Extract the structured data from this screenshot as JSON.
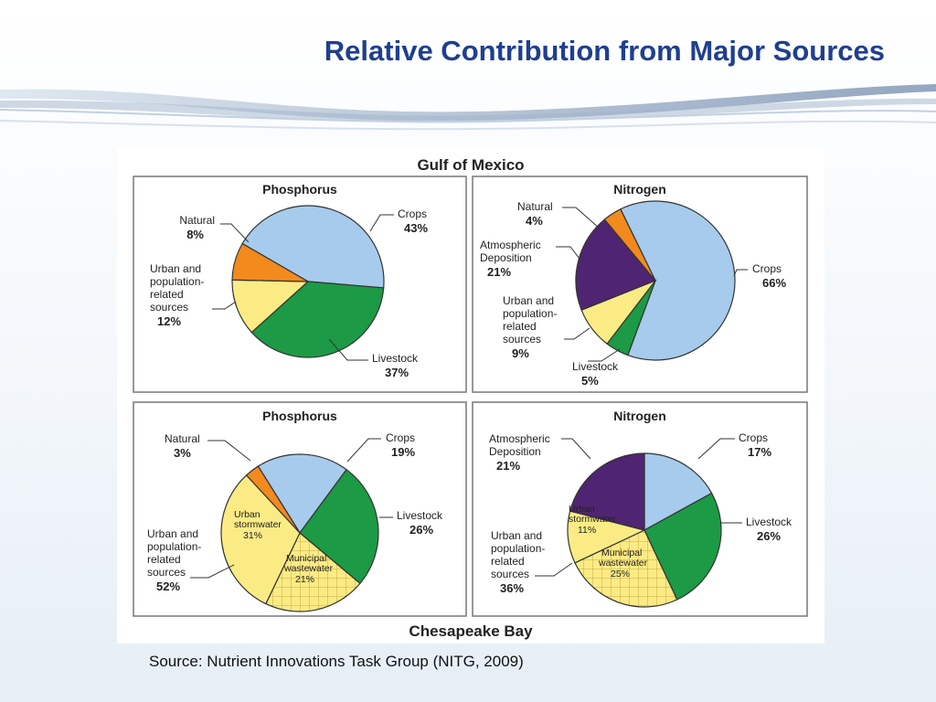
{
  "slide": {
    "title": "Relative Contribution from Major Sources",
    "source": "Source: Nutrient Innovations Task Group (NITG, 2009)"
  },
  "figure": {
    "top_heading": "Gulf of Mexico",
    "bottom_heading": "Chesapeake Bay"
  },
  "colors": {
    "crops": "#a6cbec",
    "livestock": "#1c9a45",
    "urban": "#fbeb85",
    "natural": "#f28a1e",
    "atmospheric": "#4f2472",
    "title": "#1f3f8f"
  },
  "chart_data": [
    {
      "type": "pie",
      "title": "Phosphorus",
      "region": "Gulf of Mexico",
      "slices": [
        {
          "name": "Crops",
          "value": 43,
          "label": "43%"
        },
        {
          "name": "Livestock",
          "value": 37,
          "label": "37%"
        },
        {
          "name": "Urban and population-related sources",
          "value": 12,
          "label": "12%"
        },
        {
          "name": "Natural",
          "value": 8,
          "label": "8%"
        }
      ]
    },
    {
      "type": "pie",
      "title": "Nitrogen",
      "region": "Gulf of Mexico",
      "slices": [
        {
          "name": "Crops",
          "value": 66,
          "label": "66%"
        },
        {
          "name": "Livestock",
          "value": 5,
          "label": "5%"
        },
        {
          "name": "Urban and population-related sources",
          "value": 9,
          "label": "9%"
        },
        {
          "name": "Atmospheric Deposition",
          "value": 21,
          "label": "21%"
        },
        {
          "name": "Natural",
          "value": 4,
          "label": "4%"
        }
      ]
    },
    {
      "type": "pie",
      "title": "Phosphorus",
      "region": "Chesapeake Bay",
      "slices": [
        {
          "name": "Crops",
          "value": 19,
          "label": "19%"
        },
        {
          "name": "Livestock",
          "value": 26,
          "label": "26%"
        },
        {
          "name": "Municipal wastewater",
          "value": 21,
          "label": "21%"
        },
        {
          "name": "Urban stormwater",
          "value": 31,
          "label": "31%"
        },
        {
          "name": "Natural",
          "value": 3,
          "label": "3%"
        }
      ],
      "group": {
        "name": "Urban and population-related sources",
        "label": "52%"
      }
    },
    {
      "type": "pie",
      "title": "Nitrogen",
      "region": "Chesapeake Bay",
      "slices": [
        {
          "name": "Crops",
          "value": 17,
          "label": "17%"
        },
        {
          "name": "Livestock",
          "value": 26,
          "label": "26%"
        },
        {
          "name": "Municipal wastewater",
          "value": 25,
          "label": "25%"
        },
        {
          "name": "Urban stormwater",
          "value": 11,
          "label": "11%"
        },
        {
          "name": "Atmospheric Deposition",
          "value": 21,
          "label": "21%"
        }
      ],
      "group": {
        "name": "Urban and population-related sources",
        "label": "36%"
      }
    }
  ],
  "labels": {
    "p1": {
      "natural": [
        "Natural",
        "8%"
      ],
      "crops": [
        "Crops",
        "43%"
      ],
      "urban": [
        "Urban and",
        "population-",
        "related",
        "sources",
        "12%"
      ],
      "livestock": [
        "Livestock",
        "37%"
      ]
    },
    "p2": {
      "natural": [
        "Natural",
        "4%"
      ],
      "atmo": [
        "Atmospheric",
        "Deposition",
        "21%"
      ],
      "crops": [
        "Crops",
        "66%"
      ],
      "urban": [
        "Urban and",
        "population-",
        "related",
        "sources",
        "9%"
      ],
      "livestock": [
        "Livestock",
        "5%"
      ]
    },
    "p3": {
      "natural": [
        "Natural",
        "3%"
      ],
      "crops": [
        "Crops",
        "19%"
      ],
      "livestock": [
        "Livestock",
        "26%"
      ],
      "urban": [
        "Urban and",
        "population-",
        "related",
        "sources",
        "52%"
      ],
      "stormwater": [
        "Urban",
        "stormwater",
        "31%"
      ],
      "municipal": [
        "Municipal",
        "wastewater",
        "21%"
      ]
    },
    "p4": {
      "atmo": [
        "Atmospheric",
        "Deposition",
        "21%"
      ],
      "crops": [
        "Crops",
        "17%"
      ],
      "livestock": [
        "Livestock",
        "26%"
      ],
      "urban": [
        "Urban and",
        "population-",
        "related",
        "sources",
        "36%"
      ],
      "stormwater": [
        "Urban",
        "stormwater",
        "11%"
      ],
      "municipal": [
        "Municipal",
        "wastewater",
        "25%"
      ]
    }
  }
}
